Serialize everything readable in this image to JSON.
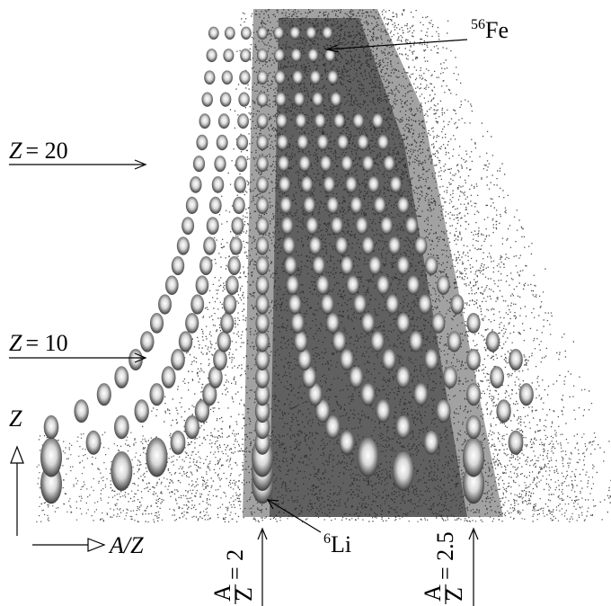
{
  "labels": {
    "fe56": {
      "mass": "56",
      "element": "Fe"
    },
    "z20": {
      "variable": "Z",
      "value": "= 20"
    },
    "z10": {
      "variable": "Z",
      "value": "= 10"
    },
    "z_axis": "Z",
    "az_axis": "A/Z",
    "li6": {
      "mass": "6",
      "element": "Li"
    },
    "az2": {
      "numerator": "A",
      "denominator": "Z",
      "value": "= 2"
    },
    "az25": {
      "numerator": "A",
      "denominator": "Z",
      "value": "= 2.5"
    }
  }
}
